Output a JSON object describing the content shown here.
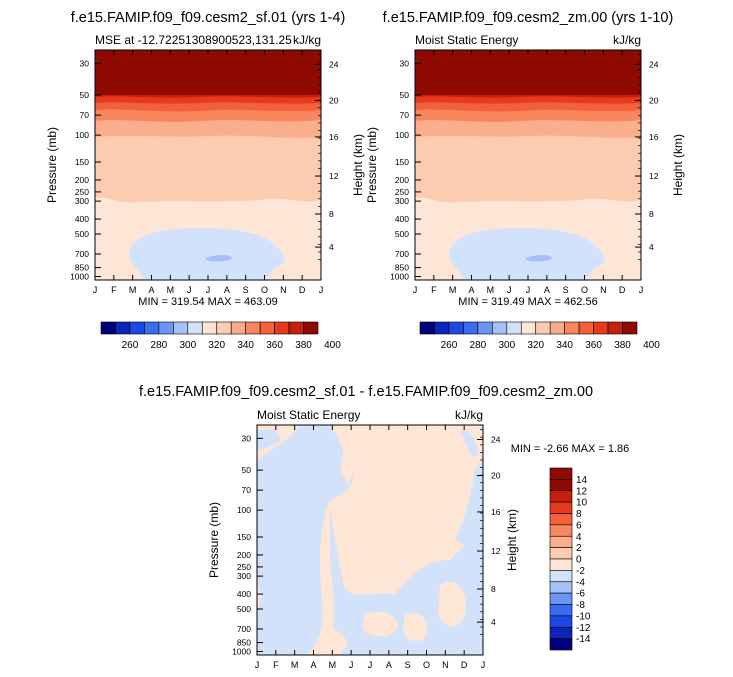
{
  "figure": {
    "panel1_title": "f.e15.FAMIP.f09_f09.cesm2_sf.01 (yrs 1-4)",
    "panel2_title": "f.e15.FAMIP.f09_f09.cesm2_zm.00 (yrs 1-10)",
    "panel3_title": "f.e15.FAMIP.f09_f09.cesm2_sf.01 - f.e15.FAMIP.f09_f09.cesm2_zm.00"
  },
  "chart_data": [
    {
      "type": "heatmap",
      "title": "f.e15.FAMIP.f09_f09.cesm2_sf.01 (yrs 1-4)",
      "left_label": "MSE at -12.72251308900523,131.25",
      "right_label": "kJ/kg",
      "ylabel": "Pressure (mb)",
      "y2label": "Height (km)",
      "x_ticks": [
        "J",
        "F",
        "M",
        "A",
        "M",
        "J",
        "J",
        "A",
        "S",
        "O",
        "N",
        "D",
        "J"
      ],
      "y_ticks": [
        "30",
        "50",
        "70",
        "100",
        "150",
        "200",
        "250",
        "300",
        "400",
        "500",
        "700",
        "850",
        "1000"
      ],
      "y2_ticks": [
        "24",
        "20",
        "16",
        "12",
        "8",
        "4"
      ],
      "stats": "MIN = 319.54 MAX = 463.09",
      "min": 319.54,
      "max": 463.09,
      "colorbar": {
        "orientation": "horizontal",
        "labels": [
          "260",
          "280",
          "300",
          "320",
          "340",
          "360",
          "380",
          "400"
        ],
        "colors": [
          "#00007f",
          "#0a25b8",
          "#1e48e6",
          "#3a6cf2",
          "#6a95f5",
          "#a3c0f7",
          "#d2e2fb",
          "#fde6d6",
          "#fccbb0",
          "#fbae8c",
          "#f8875e",
          "#f3603b",
          "#e53a1f",
          "#c81e0e",
          "#8f0b02"
        ]
      },
      "levels_desc": "filled contours: surface ~330 light blue, 340 cream, 350-360 salmon, 370-400 orange-red, >400 dark red above 50 mb"
    },
    {
      "type": "heatmap",
      "title": "f.e15.FAMIP.f09_f09.cesm2_zm.00 (yrs 1-10)",
      "left_label": "Moist Static Energy",
      "right_label": "kJ/kg",
      "ylabel": "Pressure (mb)",
      "y2label": "Height (km)",
      "x_ticks": [
        "J",
        "F",
        "M",
        "A",
        "M",
        "J",
        "J",
        "A",
        "S",
        "O",
        "N",
        "D",
        "J"
      ],
      "y_ticks": [
        "30",
        "50",
        "70",
        "100",
        "150",
        "200",
        "250",
        "300",
        "400",
        "500",
        "700",
        "850",
        "1000"
      ],
      "y2_ticks": [
        "24",
        "20",
        "16",
        "12",
        "8",
        "4"
      ],
      "stats": "MIN = 319.49 MAX = 462.56",
      "min": 319.49,
      "max": 462.56,
      "colorbar": {
        "orientation": "horizontal",
        "labels": [
          "260",
          "280",
          "300",
          "320",
          "340",
          "360",
          "380",
          "400"
        ],
        "colors": [
          "#00007f",
          "#0a25b8",
          "#1e48e6",
          "#3a6cf2",
          "#6a95f5",
          "#a3c0f7",
          "#d2e2fb",
          "#fde6d6",
          "#fccbb0",
          "#fbae8c",
          "#f8875e",
          "#f3603b",
          "#e53a1f",
          "#c81e0e",
          "#8f0b02"
        ]
      }
    },
    {
      "type": "heatmap",
      "title": "f.e15.FAMIP.f09_f09.cesm2_sf.01 - f.e15.FAMIP.f09_f09.cesm2_zm.00",
      "left_label": "Moist Static Energy",
      "right_label": "kJ/kg",
      "ylabel": "Pressure (mb)",
      "y2label": "Height (km)",
      "x_ticks": [
        "J",
        "F",
        "M",
        "A",
        "M",
        "J",
        "J",
        "A",
        "S",
        "O",
        "N",
        "D",
        "J"
      ],
      "y_ticks": [
        "30",
        "50",
        "70",
        "100",
        "150",
        "200",
        "250",
        "300",
        "400",
        "500",
        "700",
        "850",
        "1000"
      ],
      "y2_ticks": [
        "24",
        "20",
        "16",
        "12",
        "8",
        "4"
      ],
      "stats": "MIN = -2.66 MAX = 1.86",
      "min": -2.66,
      "max": 1.86,
      "colorbar": {
        "orientation": "vertical",
        "labels": [
          "14",
          "12",
          "10",
          "8",
          "6",
          "4",
          "2",
          "0",
          "-2",
          "-4",
          "-6",
          "-8",
          "-10",
          "-12",
          "-14"
        ],
        "colors": [
          "#8f0b02",
          "#c81e0e",
          "#e53a1f",
          "#f3603b",
          "#f8875e",
          "#fbae8c",
          "#fccbb0",
          "#fde6d6",
          "#d2e2fb",
          "#a3c0f7",
          "#6a95f5",
          "#3a6cf2",
          "#1e48e6",
          "#0a25b8",
          "#00007f"
        ]
      }
    }
  ]
}
